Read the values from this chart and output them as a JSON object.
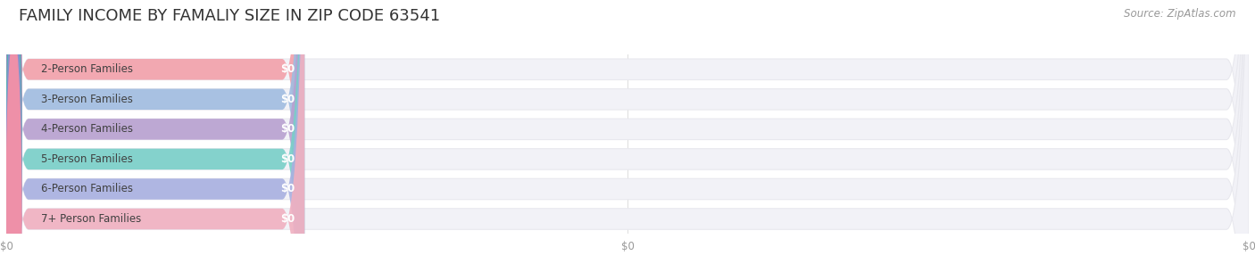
{
  "title": "FAMILY INCOME BY FAMALIY SIZE IN ZIP CODE 63541",
  "source": "Source: ZipAtlas.com",
  "categories": [
    "2-Person Families",
    "3-Person Families",
    "4-Person Families",
    "5-Person Families",
    "6-Person Families",
    "7+ Person Families"
  ],
  "values": [
    0,
    0,
    0,
    0,
    0,
    0
  ],
  "bar_colors": [
    "#f2a0aa",
    "#a0bce0",
    "#b8a0d0",
    "#78cfc8",
    "#a8b0e0",
    "#f0b0c0"
  ],
  "circle_colors": [
    "#ee8090",
    "#7aaace",
    "#a080be",
    "#50b8b0",
    "#8890ce",
    "#ee90a8"
  ],
  "value_labels": [
    "$0",
    "$0",
    "$0",
    "$0",
    "$0",
    "$0"
  ],
  "x_tick_labels": [
    "$0",
    "$0",
    "$0"
  ],
  "background_color": "#ffffff",
  "bar_bg_color": "#f2f2f7",
  "bar_bg_border": "#e8e8ee",
  "title_fontsize": 13,
  "label_fontsize": 8.5,
  "source_fontsize": 8.5,
  "max_val": 1000,
  "label_section_val": 240,
  "total_width": 1000
}
